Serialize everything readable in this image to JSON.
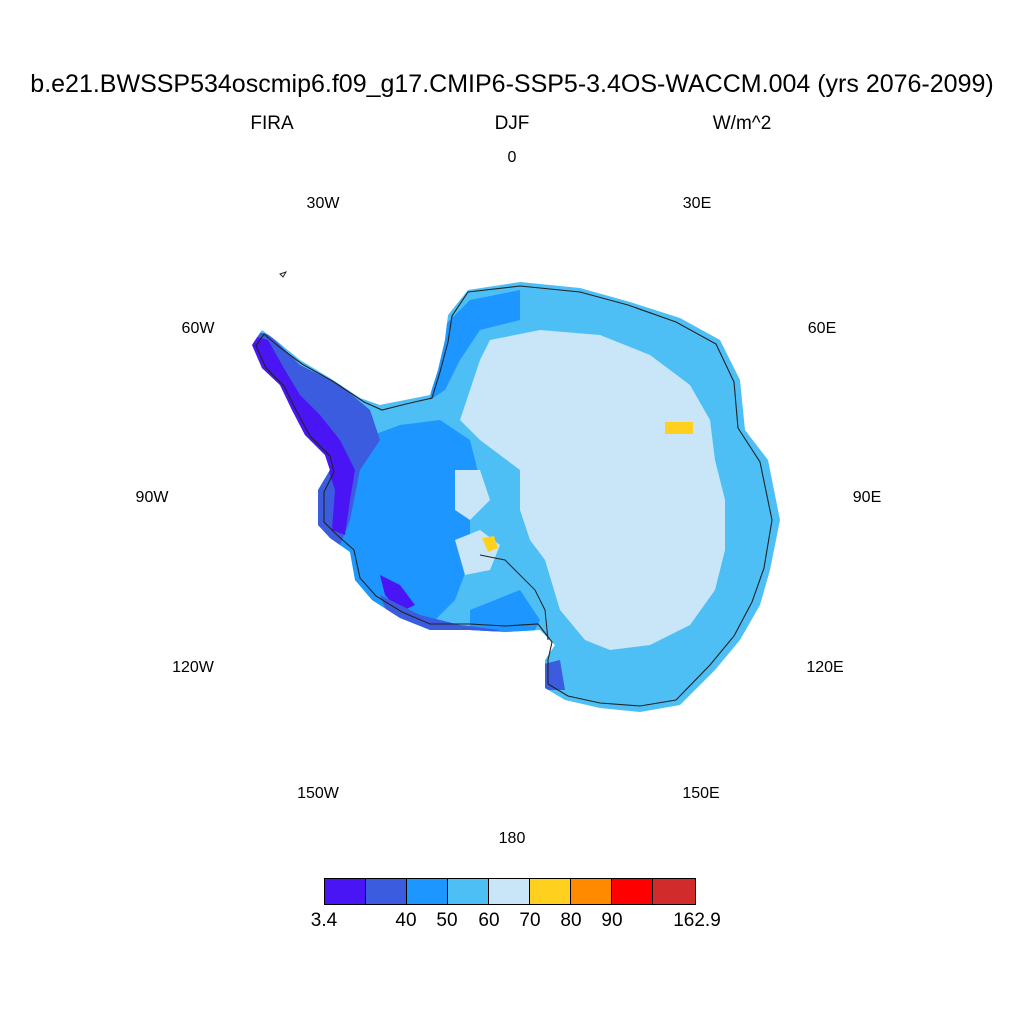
{
  "title": "b.e21.BWSSP534oscmip6.f09_g17.CMIP6-SSP5-3.4OS-WACCM.004 (yrs 2076-2099)",
  "variable": "FIRA",
  "season": "DJF",
  "units": "W/m^2",
  "longitude_labels": {
    "lon_0": "0",
    "lon_30e": "30E",
    "lon_60e": "60E",
    "lon_90e": "90E",
    "lon_120e": "120E",
    "lon_150e": "150E",
    "lon_180": "180",
    "lon_150w": "150W",
    "lon_120w": "120W",
    "lon_90w": "90W",
    "lon_60w": "60W",
    "lon_30w": "30W"
  },
  "colorbar": {
    "colors": [
      "#4a15f5",
      "#3c5ce0",
      "#1e96ff",
      "#4dbff5",
      "#c8e6f8",
      "#ffd11e",
      "#ff8a00",
      "#ff0000",
      "#d12b2b"
    ],
    "labels": [
      "3.4",
      "40",
      "50",
      "60",
      "70",
      "80",
      "90",
      "162.9"
    ]
  },
  "map_colors": {
    "interior": "#c8e6f8",
    "margin": "#4dbff5",
    "coast": "#1e96ff",
    "peninsula_outer": "#3c5ce0",
    "peninsula_tip": "#4a15f5",
    "hotspot": "#ffd11e",
    "coastline": "#222222"
  }
}
